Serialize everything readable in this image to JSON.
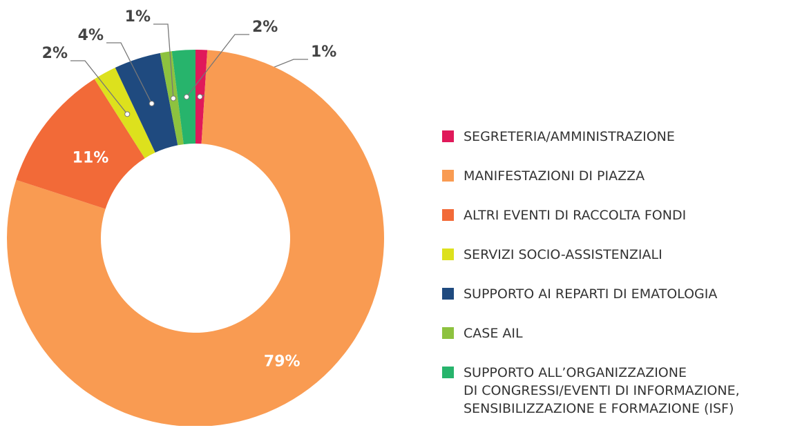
{
  "chart_data": {
    "type": "donut",
    "categories": [
      "SEGRETERIA/AMMINISTRAZIONE",
      "MANIFESTAZIONI DI PIAZZA",
      "ALTRI EVENTI DI RACCOLTA FONDI",
      "SERVIZI SOCIO-ASSISTENZIALI",
      "SUPPORTO AI REPARTI DI EMATOLOGIA",
      "CASE AIL",
      "SUPPORTO ALL’ORGANIZZAZIONE\nDI CONGRESSI/EVENTI DI INFORMAZIONE,\nSENSIBILIZZAZIONE E FORMAZIONE (ISF)"
    ],
    "values": [
      1,
      79,
      11,
      2,
      4,
      1,
      2
    ],
    "value_labels": [
      "1%",
      "79%",
      "11%",
      "2%",
      "4%",
      "1%",
      "2%"
    ],
    "colors": [
      "#e0195a",
      "#f99b52",
      "#f26a38",
      "#dde11d",
      "#1f4a7f",
      "#8dc23f",
      "#27b46c"
    ],
    "legend": "right"
  }
}
